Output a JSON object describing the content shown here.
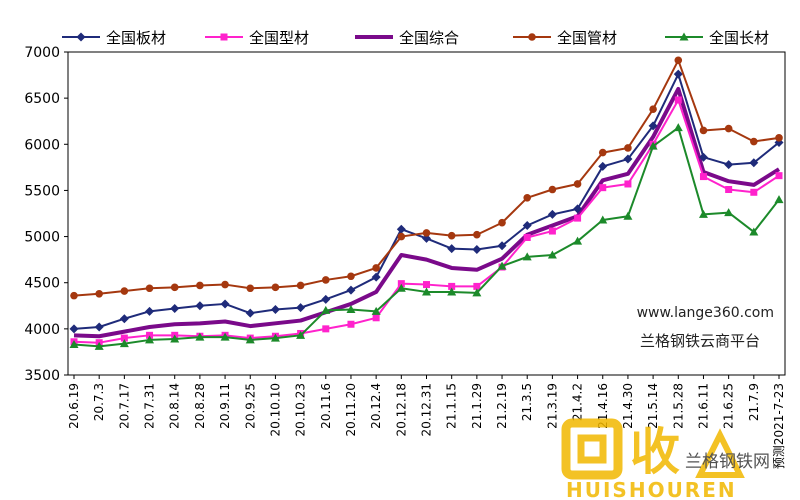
{
  "chart_data": {
    "type": "line",
    "title": "",
    "xlabel": "",
    "ylabel": "",
    "ylim": [
      3500,
      7000
    ],
    "yticks": [
      3500,
      4000,
      4500,
      5000,
      5500,
      6000,
      6500,
      7000
    ],
    "grid": false,
    "legend_position": "top",
    "xtick_labels": [
      "20.6.19",
      "20.7.3",
      "20.7.17",
      "20.7.31",
      "20.8.14",
      "20.8.28",
      "20.9.11",
      "20.9.25",
      "20.10.10",
      "20.10.23",
      "20.11.6",
      "20.11.20",
      "20.12.4",
      "20.12.18",
      "20.12.31",
      "21.1.15",
      "21.1.29",
      "21.2.19",
      "21.3.5",
      "21.3.19",
      "21.4.2",
      "21.4.16",
      "21.4.30",
      "21.5.14",
      "21.5.28",
      "21.6.11",
      "21.6.25",
      "21.7.9",
      "预测2021-7-23"
    ],
    "x": [
      0,
      1,
      2,
      3,
      4,
      5,
      6,
      7,
      8,
      9,
      10,
      11,
      12,
      13,
      14,
      15,
      16,
      17,
      18,
      19,
      20,
      21,
      22,
      23,
      24,
      25,
      26,
      27,
      28
    ],
    "series": [
      {
        "name": "全国板材",
        "color": "#1f2b7a",
        "marker": "diamond",
        "values": [
          4000,
          4020,
          4110,
          4190,
          4220,
          4250,
          4270,
          4170,
          4210,
          4230,
          4320,
          4420,
          4560,
          5080,
          4980,
          4870,
          4860,
          4900,
          5120,
          5240,
          5300,
          5760,
          5840,
          6200,
          6760,
          5860,
          5780,
          5800,
          6020
        ]
      },
      {
        "name": "全国型材",
        "color": "#ff22cc",
        "marker": "square",
        "values": [
          3860,
          3850,
          3900,
          3930,
          3930,
          3920,
          3930,
          3900,
          3920,
          3950,
          4000,
          4050,
          4120,
          4490,
          4480,
          4460,
          4460,
          4670,
          4990,
          5060,
          5200,
          5530,
          5570,
          6000,
          6480,
          5650,
          5510,
          5480,
          5660
        ]
      },
      {
        "name": "全国综合",
        "color": "#7a0a8a",
        "marker": "none",
        "values": [
          3930,
          3920,
          3970,
          4020,
          4050,
          4060,
          4080,
          4030,
          4060,
          4090,
          4180,
          4270,
          4400,
          4800,
          4750,
          4660,
          4640,
          4760,
          5020,
          5120,
          5220,
          5610,
          5680,
          6080,
          6600,
          5700,
          5600,
          5560,
          5730
        ]
      },
      {
        "name": "全国管材",
        "color": "#a5380f",
        "marker": "circle",
        "values": [
          4360,
          4380,
          4410,
          4440,
          4450,
          4470,
          4480,
          4440,
          4450,
          4470,
          4530,
          4570,
          4660,
          5000,
          5040,
          5010,
          5020,
          5150,
          5420,
          5510,
          5570,
          5910,
          5960,
          6380,
          6910,
          6150,
          6170,
          6030,
          6070
        ]
      },
      {
        "name": "全国长材",
        "color": "#1c8a2a",
        "marker": "triangle",
        "values": [
          3830,
          3810,
          3840,
          3880,
          3890,
          3910,
          3910,
          3880,
          3900,
          3930,
          4200,
          4210,
          4190,
          4440,
          4400,
          4400,
          4390,
          4680,
          4780,
          4800,
          4950,
          5180,
          5220,
          5980,
          6180,
          5240,
          5260,
          5050,
          5400
        ]
      }
    ]
  },
  "watermark": {
    "site": "www.lange360.com",
    "name": "兰格钢铁云商平台",
    "logo_text_cn": "回收",
    "logo_text_en": "HUISHOUREN",
    "logo_sub": "兰格钢铁网",
    "logo_color": "#f2b800"
  }
}
